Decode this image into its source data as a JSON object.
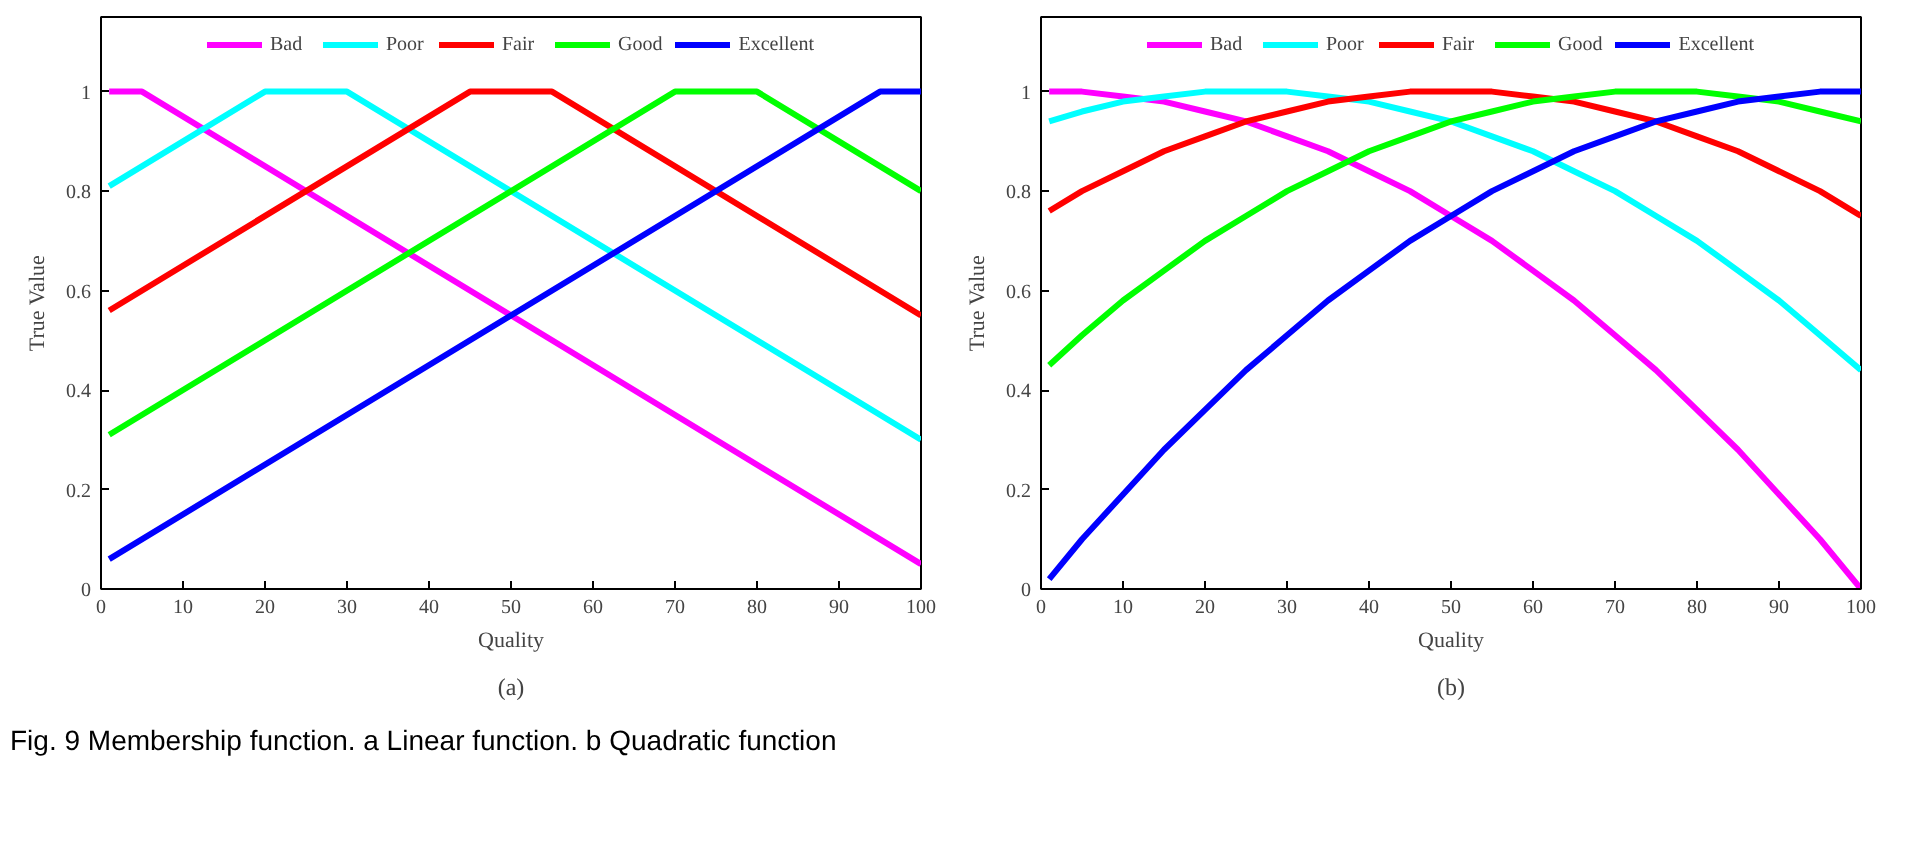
{
  "chart_data": [
    {
      "type": "line",
      "xlabel": "Quality",
      "ylabel": "True Value",
      "xlim": [
        0,
        100
      ],
      "ylim": [
        0,
        1.15
      ],
      "xticks": [
        0,
        10,
        20,
        30,
        40,
        50,
        60,
        70,
        80,
        90,
        100
      ],
      "yticks": [
        0,
        0.2,
        0.4,
        0.6,
        0.8,
        1
      ],
      "grid": false,
      "legend": "top",
      "marker": "none",
      "line_style": "solid",
      "annotations": [
        "(a)",
        "Fig. 9 Membership function. a Linear function. b Quadratic function"
      ],
      "series": [
        {
          "name": "Bad",
          "color": "#ff00ff",
          "x": [
            1,
            5,
            100
          ],
          "values": [
            1,
            1,
            0.05
          ]
        },
        {
          "name": "Poor",
          "color": "#00ffff",
          "x": [
            1,
            20,
            30,
            100
          ],
          "values": [
            0.81,
            1,
            1,
            0.3
          ]
        },
        {
          "name": "Fair",
          "color": "#ff0000",
          "x": [
            1,
            45,
            55,
            100
          ],
          "values": [
            0.56,
            1,
            1,
            0.55
          ]
        },
        {
          "name": "Good",
          "color": "#00ff00",
          "x": [
            1,
            70,
            80,
            100
          ],
          "values": [
            0.31,
            1,
            1,
            0.8
          ]
        },
        {
          "name": "Excellent",
          "color": "#0000ff",
          "x": [
            1,
            95,
            100
          ],
          "values": [
            0.06,
            1,
            1
          ]
        }
      ]
    },
    {
      "type": "line",
      "xlabel": "Quality",
      "ylabel": "True Value",
      "xlim": [
        0,
        100
      ],
      "ylim": [
        0,
        1.15
      ],
      "xticks": [
        0,
        10,
        20,
        30,
        40,
        50,
        60,
        70,
        80,
        90,
        100
      ],
      "yticks": [
        0,
        0.2,
        0.4,
        0.6,
        0.8,
        1
      ],
      "grid": false,
      "legend": "top",
      "marker": "none",
      "line_style": "solid",
      "annotations": [
        "(b)"
      ],
      "x": [
        1,
        5,
        10,
        15,
        20,
        25,
        30,
        35,
        40,
        45,
        50,
        55,
        60,
        65,
        70,
        75,
        80,
        85,
        90,
        95,
        100
      ],
      "series": [
        {
          "name": "Bad",
          "color": "#ff00ff",
          "values": [
            1,
            1,
            0.99,
            0.98,
            0.96,
            0.94,
            0.91,
            0.88,
            0.84,
            0.8,
            0.75,
            0.7,
            0.64,
            0.58,
            0.51,
            0.44,
            0.36,
            0.28,
            0.19,
            0.1,
            0
          ]
        },
        {
          "name": "Poor",
          "color": "#00ffff",
          "values": [
            0.94,
            0.96,
            0.98,
            0.99,
            1,
            1,
            1,
            0.99,
            0.98,
            0.96,
            0.94,
            0.91,
            0.88,
            0.84,
            0.8,
            0.75,
            0.7,
            0.64,
            0.58,
            0.51,
            0.44
          ]
        },
        {
          "name": "Fair",
          "color": "#ff0000",
          "values": [
            0.76,
            0.8,
            0.84,
            0.88,
            0.91,
            0.94,
            0.96,
            0.98,
            0.99,
            1,
            1,
            1,
            0.99,
            0.98,
            0.96,
            0.94,
            0.91,
            0.88,
            0.84,
            0.8,
            0.75
          ]
        },
        {
          "name": "Good",
          "color": "#00ff00",
          "values": [
            0.45,
            0.51,
            0.58,
            0.64,
            0.7,
            0.75,
            0.8,
            0.84,
            0.88,
            0.91,
            0.94,
            0.96,
            0.98,
            0.99,
            1,
            1,
            1,
            0.99,
            0.98,
            0.96,
            0.94
          ]
        },
        {
          "name": "Excellent",
          "color": "#0000ff",
          "values": [
            0.02,
            0.1,
            0.19,
            0.28,
            0.36,
            0.44,
            0.51,
            0.58,
            0.64,
            0.7,
            0.75,
            0.8,
            0.84,
            0.88,
            0.91,
            0.94,
            0.96,
            0.98,
            0.99,
            1,
            1
          ]
        }
      ]
    }
  ]
}
